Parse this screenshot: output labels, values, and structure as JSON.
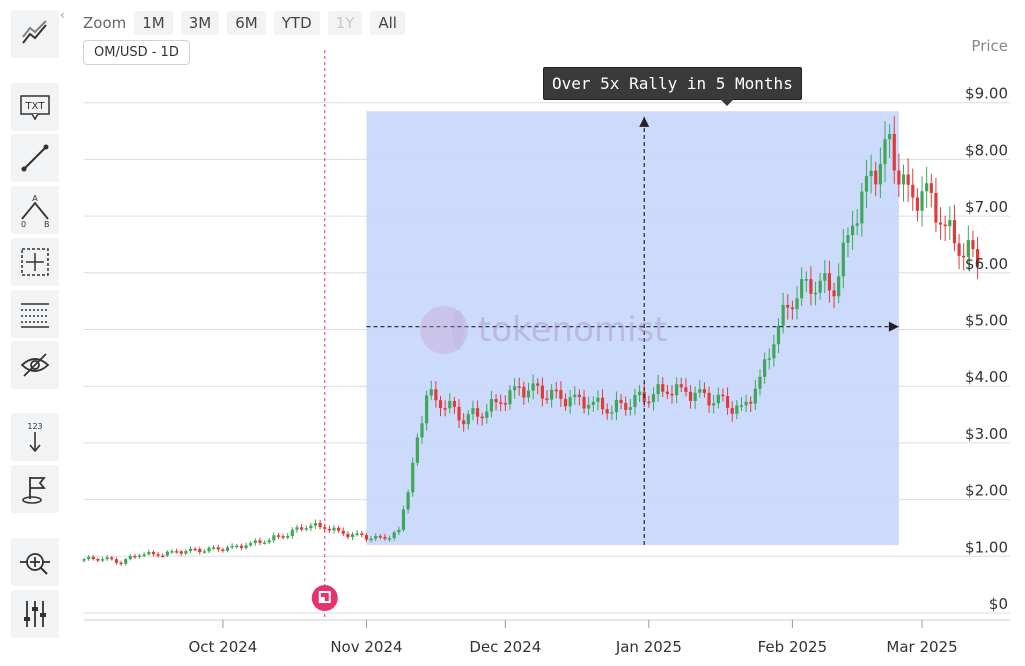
{
  "toolbar": {
    "tools": [
      {
        "name": "chart-style-icon",
        "label": ""
      },
      {
        "name": "text-tool-icon",
        "label": "TXT"
      },
      {
        "name": "line-tool-icon",
        "label": ""
      },
      {
        "name": "abc-pattern-icon",
        "label": "A 0 B"
      },
      {
        "name": "measure-tool-icon",
        "label": ""
      },
      {
        "name": "fibonacci-tool-icon",
        "label": ""
      },
      {
        "name": "hide-drawings-icon",
        "label": ""
      },
      {
        "name": "counter-tool-icon",
        "label": "123"
      },
      {
        "name": "flag-tool-icon",
        "label": ""
      },
      {
        "name": "crosshair-zoom-icon",
        "label": ""
      },
      {
        "name": "indicators-icon",
        "label": ""
      }
    ],
    "collapse": "‹"
  },
  "zoom": {
    "label": "Zoom",
    "buttons": [
      "1M",
      "3M",
      "6M",
      "YTD",
      "1Y",
      "All"
    ],
    "disabled": "1Y"
  },
  "symbol": "OM/USD - 1D",
  "annotation": "Over 5x Rally in 5 Months",
  "watermark": "tokenomist",
  "marker_color": "#e5336b",
  "colors": {
    "up": "#3fa65b",
    "down": "#e03b3b",
    "highlight": "#c9d9fb",
    "vline": "#e5336b"
  },
  "chart_data": {
    "type": "candlestick",
    "title": "",
    "xlabel": "",
    "ylabel": "Price",
    "ylim": [
      0,
      9.5
    ],
    "yticks": [
      "$0",
      "$1.00",
      "$2.00",
      "$3.00",
      "$4.00",
      "$5.00",
      "$6.00",
      "$7.00",
      "$8.00",
      "$9.00"
    ],
    "xticks": [
      "Oct 2024",
      "Nov 2024",
      "Dec 2024",
      "Jan 2025",
      "Feb 2025",
      "Mar 2025"
    ],
    "series": [
      {
        "name": "",
        "points": [
          [
            "2024-09-01",
            0.95
          ],
          [
            "2024-09-05",
            0.97
          ],
          [
            "2024-09-09",
            0.9
          ],
          [
            "2024-09-13",
            1.05
          ],
          [
            "2024-09-17",
            1.03
          ],
          [
            "2024-09-21",
            1.08
          ],
          [
            "2024-09-25",
            1.1
          ],
          [
            "2024-09-29",
            1.12
          ],
          [
            "2024-10-03",
            1.15
          ],
          [
            "2024-10-07",
            1.22
          ],
          [
            "2024-10-11",
            1.3
          ],
          [
            "2024-10-15",
            1.4
          ],
          [
            "2024-10-19",
            1.55
          ],
          [
            "2024-10-23",
            1.52
          ],
          [
            "2024-10-27",
            1.4
          ],
          [
            "2024-10-31",
            1.35
          ],
          [
            "2024-11-04",
            1.3
          ],
          [
            "2024-11-08",
            1.42
          ],
          [
            "2024-11-11",
            2.6
          ],
          [
            "2024-11-14",
            3.85
          ],
          [
            "2024-11-18",
            3.7
          ],
          [
            "2024-11-22",
            3.45
          ],
          [
            "2024-11-26",
            3.55
          ],
          [
            "2024-11-30",
            3.75
          ],
          [
            "2024-12-04",
            3.95
          ],
          [
            "2024-12-08",
            3.9
          ],
          [
            "2024-12-12",
            3.8
          ],
          [
            "2024-12-16",
            3.75
          ],
          [
            "2024-12-20",
            3.7
          ],
          [
            "2024-12-24",
            3.6
          ],
          [
            "2024-12-28",
            3.75
          ],
          [
            "2025-01-01",
            3.85
          ],
          [
            "2025-01-05",
            3.95
          ],
          [
            "2025-01-09",
            3.9
          ],
          [
            "2025-01-13",
            3.8
          ],
          [
            "2025-01-17",
            3.7
          ],
          [
            "2025-01-21",
            3.55
          ],
          [
            "2025-01-25",
            4.1
          ],
          [
            "2025-01-29",
            5.1
          ],
          [
            "2025-02-02",
            5.7
          ],
          [
            "2025-02-06",
            5.85
          ],
          [
            "2025-02-10",
            5.75
          ],
          [
            "2025-02-14",
            6.9
          ],
          [
            "2025-02-18",
            7.7
          ],
          [
            "2025-02-22",
            8.2
          ],
          [
            "2025-02-26",
            7.3
          ],
          [
            "2025-03-02",
            7.4
          ],
          [
            "2025-03-06",
            6.8
          ],
          [
            "2025-03-10",
            6.4
          ],
          [
            "2025-03-14",
            6.3
          ]
        ]
      }
    ],
    "highlight": {
      "from": "2024-11-01",
      "to": "2025-02-24",
      "low": 1.2,
      "high": 8.85
    },
    "vertical_line": "2024-10-23",
    "arrows": [
      {
        "from": [
          "2024-12-31",
          1.2
        ],
        "to": [
          "2024-12-31",
          8.75
        ],
        "direction": "up"
      },
      {
        "from": [
          "2024-11-01",
          5.05
        ],
        "to": [
          "2025-02-24",
          5.05
        ],
        "direction": "right"
      }
    ]
  }
}
